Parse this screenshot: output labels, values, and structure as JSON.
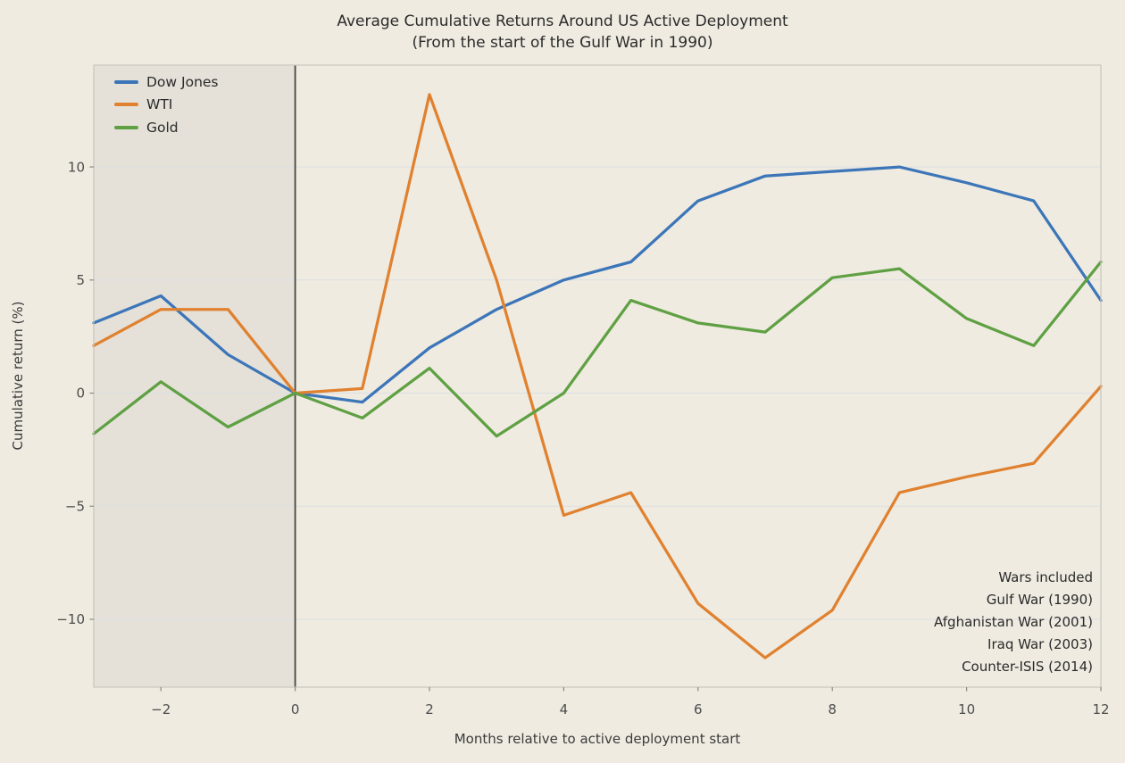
{
  "title": {
    "line1": "Average Cumulative Returns Around US Active Deployment",
    "line2": "(From the start of the Gulf War in 1990)"
  },
  "chart_data": {
    "type": "line",
    "x": [
      -3,
      -2,
      -1,
      0,
      1,
      2,
      3,
      4,
      5,
      6,
      7,
      8,
      9,
      10,
      11,
      12
    ],
    "series": [
      {
        "name": "Dow Jones",
        "color": "#3c76b8",
        "values": [
          3.1,
          4.3,
          1.7,
          0.0,
          -0.4,
          2.0,
          3.7,
          5.0,
          5.8,
          8.5,
          9.6,
          9.8,
          10.0,
          9.3,
          8.5,
          4.1
        ]
      },
      {
        "name": "WTI",
        "color": "#e0812f",
        "values": [
          2.1,
          3.7,
          3.7,
          0.0,
          0.2,
          13.2,
          5.0,
          -5.4,
          -4.4,
          -9.3,
          -11.7,
          -9.6,
          -4.4,
          -3.7,
          -3.1,
          0.3
        ]
      },
      {
        "name": "Gold",
        "color": "#5fa043",
        "values": [
          -1.8,
          0.5,
          -1.5,
          0.0,
          -1.1,
          1.1,
          -1.9,
          0.0,
          4.1,
          3.1,
          2.7,
          5.1,
          5.5,
          3.3,
          2.1,
          5.8
        ]
      }
    ],
    "xlabel": "Months relative to active deployment start",
    "ylabel": "Cumulative return (%)",
    "xlim": [
      -3,
      12
    ],
    "ylim": [
      -13,
      14.5
    ],
    "xticks": [
      -2,
      0,
      2,
      4,
      6,
      8,
      10,
      12
    ],
    "yticks": [
      -10,
      -5,
      0,
      5,
      10
    ],
    "grid": "horizontal",
    "legend_position": "upper-left",
    "event_line_x": 0,
    "pre_event_shaded_span": [
      -3,
      0
    ],
    "annotation": {
      "position": "lower-right",
      "lines": [
        "Wars included",
        "Gulf War (1990)",
        "Afghanistan War (2001)",
        "Iraq War (2003)",
        "Counter-ISIS (2014)"
      ]
    }
  },
  "colors": {
    "figure_background": "#efebe1",
    "shaded_span": "#e5e1d9",
    "gridline": "#dcdfe2",
    "event_line": "#45443e",
    "axis_frame": "#c8c6be",
    "tick_mark": "#8a887f",
    "dow_jones": "#3c76b8",
    "wti": "#e0812f",
    "gold": "#5fa043"
  }
}
